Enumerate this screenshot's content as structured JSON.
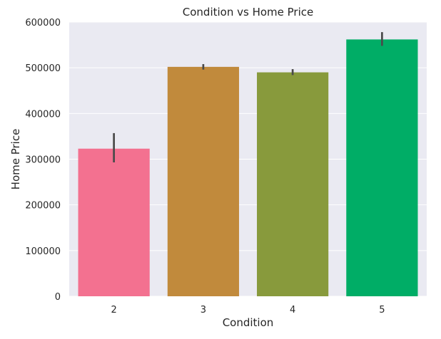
{
  "chart_data": {
    "type": "bar",
    "title": "Condition vs Home Price",
    "xlabel": "Condition",
    "ylabel": "Home Price",
    "categories": [
      "2",
      "3",
      "4",
      "5"
    ],
    "values": [
      323000,
      502000,
      490000,
      562000
    ],
    "error_low": [
      293000,
      496000,
      484000,
      548000
    ],
    "error_high": [
      357000,
      508000,
      497000,
      578000
    ],
    "colors": [
      "#f37190",
      "#c18a3c",
      "#889a3c",
      "#00ad66"
    ],
    "ylim": [
      0,
      600000
    ],
    "yticks": [
      0,
      100000,
      200000,
      300000,
      400000,
      500000,
      600000
    ],
    "ytick_labels": [
      "0",
      "100000",
      "200000",
      "300000",
      "400000",
      "500000",
      "600000"
    ],
    "grid": true,
    "background": "#eaeaf2",
    "error_color": "#4a4a4a"
  }
}
